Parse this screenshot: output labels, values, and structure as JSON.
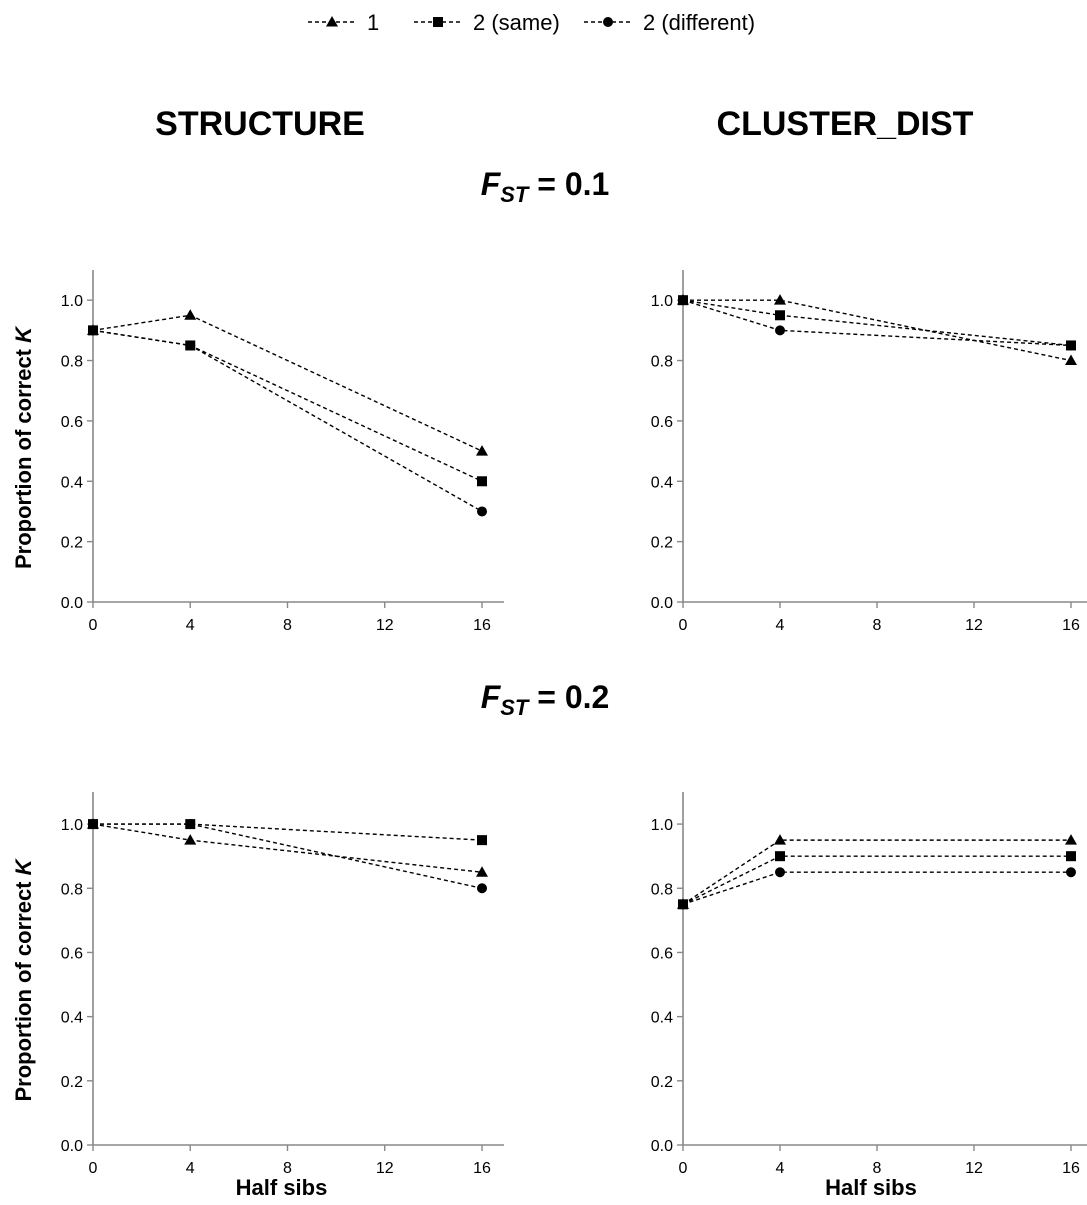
{
  "legend": [
    {
      "label": "1",
      "marker": "triangle"
    },
    {
      "label": "2 (same)",
      "marker": "square"
    },
    {
      "label": "2 (different)",
      "marker": "circle"
    }
  ],
  "column_titles": [
    "STRUCTURE",
    "CLUSTER_DIST"
  ],
  "row_titles": [
    {
      "symbol": "F",
      "subscript": "ST",
      "text": " = 0.1"
    },
    {
      "symbol": "F",
      "subscript": "ST",
      "text": " = 0.2"
    }
  ],
  "chart_data": [
    {
      "type": "line",
      "panel": "STRUCTURE, F_ST = 0.1",
      "x": [
        0,
        4,
        16
      ],
      "xticks": [
        "0",
        "4",
        "8",
        "12",
        "16"
      ],
      "yticks": [
        "0.0",
        "0.2",
        "0.4",
        "0.6",
        "0.8",
        "1.0"
      ],
      "xlim": [
        0,
        16
      ],
      "ylim": [
        0,
        1.1
      ],
      "ylabel": "Proportion of correct K",
      "xlabel": "",
      "series": [
        {
          "name": "1",
          "values": [
            0.9,
            0.95,
            0.5
          ]
        },
        {
          "name": "2 (same)",
          "values": [
            0.9,
            0.85,
            0.4
          ]
        },
        {
          "name": "2 (different)",
          "values": [
            0.9,
            0.85,
            0.3
          ]
        }
      ]
    },
    {
      "type": "line",
      "panel": "CLUSTER_DIST, F_ST = 0.1",
      "x": [
        0,
        4,
        16
      ],
      "xticks": [
        "0",
        "4",
        "8",
        "12",
        "16"
      ],
      "yticks": [
        "0.0",
        "0.2",
        "0.4",
        "0.6",
        "0.8",
        "1.0"
      ],
      "xlim": [
        0,
        16
      ],
      "ylim": [
        0,
        1.1
      ],
      "ylabel": "",
      "xlabel": "",
      "series": [
        {
          "name": "1",
          "values": [
            1.0,
            1.0,
            0.8
          ]
        },
        {
          "name": "2 (same)",
          "values": [
            1.0,
            0.95,
            0.85
          ]
        },
        {
          "name": "2 (different)",
          "values": [
            1.0,
            0.9,
            0.85
          ]
        }
      ]
    },
    {
      "type": "line",
      "panel": "STRUCTURE, F_ST = 0.2",
      "x": [
        0,
        4,
        16
      ],
      "xticks": [
        "0",
        "4",
        "8",
        "12",
        "16"
      ],
      "yticks": [
        "0.0",
        "0.2",
        "0.4",
        "0.6",
        "0.8",
        "1.0"
      ],
      "xlim": [
        0,
        16
      ],
      "ylim": [
        0,
        1.1
      ],
      "ylabel": "Proportion of correct K",
      "xlabel": "Half sibs",
      "series": [
        {
          "name": "1",
          "values": [
            1.0,
            0.95,
            0.85
          ]
        },
        {
          "name": "2 (same)",
          "values": [
            1.0,
            1.0,
            0.95
          ]
        },
        {
          "name": "2 (different)",
          "values": [
            1.0,
            1.0,
            0.8
          ]
        }
      ]
    },
    {
      "type": "line",
      "panel": "CLUSTER_DIST, F_ST = 0.2",
      "x": [
        0,
        4,
        16
      ],
      "xticks": [
        "0",
        "4",
        "8",
        "12",
        "16"
      ],
      "yticks": [
        "0.0",
        "0.2",
        "0.4",
        "0.6",
        "0.8",
        "1.0"
      ],
      "xlim": [
        0,
        16
      ],
      "ylim": [
        0,
        1.1
      ],
      "ylabel": "",
      "xlabel": "Half sibs",
      "series": [
        {
          "name": "1",
          "values": [
            0.75,
            0.95,
            0.95
          ]
        },
        {
          "name": "2 (same)",
          "values": [
            0.75,
            0.9,
            0.9
          ]
        },
        {
          "name": "2 (different)",
          "values": [
            0.75,
            0.85,
            0.85
          ]
        }
      ]
    }
  ]
}
